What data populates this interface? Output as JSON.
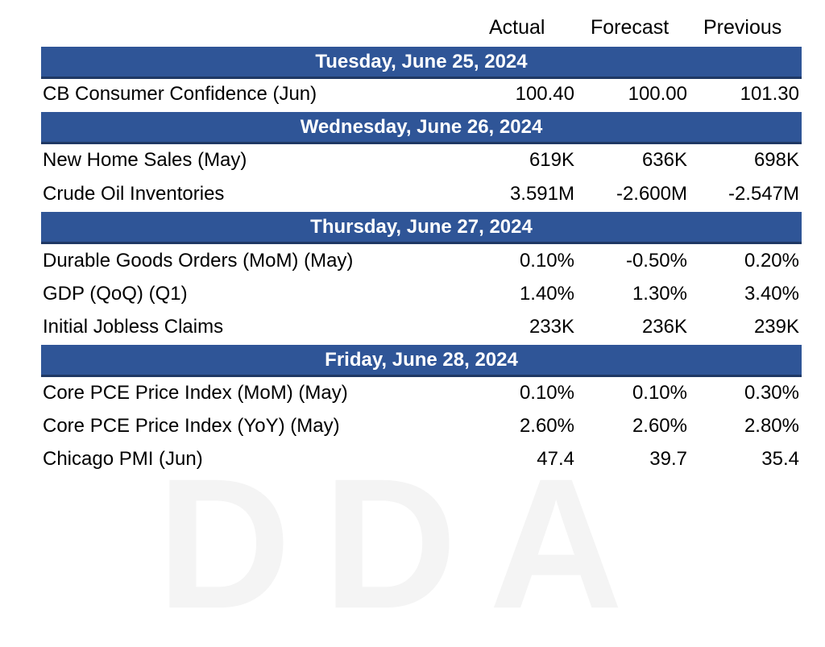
{
  "header": {
    "actual": "Actual",
    "forecast": "Forecast",
    "previous": "Previous"
  },
  "sections": [
    {
      "date": "Tuesday, June 25, 2024",
      "rows": [
        {
          "name": "CB Consumer Confidence (Jun)",
          "actual": "100.40",
          "forecast": "100.00",
          "previous": "101.30"
        }
      ]
    },
    {
      "date": "Wednesday, June 26, 2024",
      "rows": [
        {
          "name": "New Home Sales (May)",
          "actual": "619K",
          "forecast": "636K",
          "previous": "698K"
        },
        {
          "name": "Crude Oil Inventories",
          "actual": "3.591M",
          "forecast": "-2.600M",
          "previous": "-2.547M"
        }
      ]
    },
    {
      "date": "Thursday, June 27, 2024",
      "rows": [
        {
          "name": "Durable Goods Orders (MoM) (May)",
          "actual": "0.10%",
          "forecast": "-0.50%",
          "previous": "0.20%"
        },
        {
          "name": "GDP (QoQ) (Q1)",
          "actual": "1.40%",
          "forecast": "1.30%",
          "previous": "3.40%"
        },
        {
          "name": "Initial Jobless Claims",
          "actual": "233K",
          "forecast": "236K",
          "previous": "239K"
        }
      ]
    },
    {
      "date": "Friday, June 28, 2024",
      "rows": [
        {
          "name": "Core PCE Price Index (MoM) (May)",
          "actual": "0.10%",
          "forecast": "0.10%",
          "previous": "0.30%"
        },
        {
          "name": "Core PCE Price Index (YoY) (May)",
          "actual": "2.60%",
          "forecast": "2.60%",
          "previous": "2.80%"
        },
        {
          "name": "Chicago PMI (Jun)",
          "actual": "47.4",
          "forecast": "39.7",
          "previous": "35.4"
        }
      ]
    }
  ]
}
